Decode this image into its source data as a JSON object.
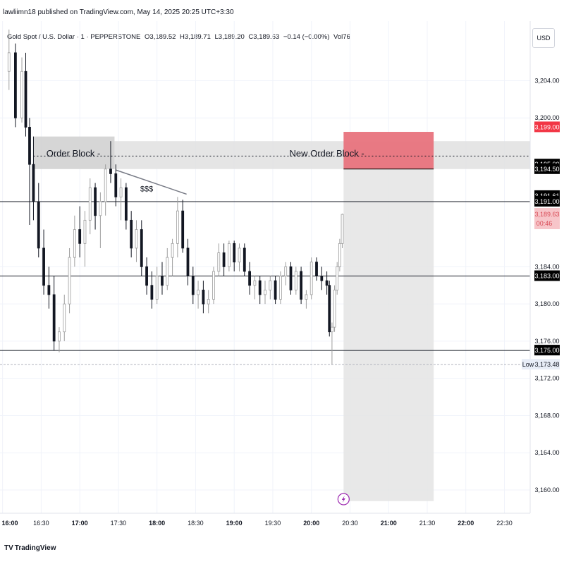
{
  "header": {
    "publisher_line": "lawliimn18 published on TradingView.com, May 14, 2025 20:25 UTC+3:30",
    "symbol": "Gold Spot / U.S. Dollar · 1 · PEPPERSTONE",
    "open": "O3,189.52",
    "high": "H3,189.71",
    "low": "L3,189.20",
    "close": "C3,189.63",
    "change": "−0.14 (−0.00%)",
    "volume": "Vol76",
    "currency": "USD"
  },
  "branding": {
    "logo_text": "TradingView",
    "logo_mark": "TV"
  },
  "chart_data": {
    "type": "candlestick",
    "x_ticks": [
      "16:00",
      "16:30",
      "17:00",
      "17:30",
      "18:00",
      "18:30",
      "19:00",
      "19:30",
      "20:00",
      "20:30",
      "21:00",
      "21:30",
      "22:00",
      "22:30"
    ],
    "x_ticks_bold": [
      "16:00",
      "17:00",
      "18:00",
      "19:00",
      "20:00",
      "21:00",
      "22:00"
    ],
    "y_ticks": [
      "3,204.00",
      "3,200.00",
      "3,184.00",
      "3,180.00",
      "3,176.00",
      "3,172.00",
      "3,168.00",
      "3,164.00",
      "3,160.00"
    ],
    "y_tick_values": [
      3204,
      3200,
      3184,
      3180,
      3176,
      3172,
      3168,
      3164,
      3160
    ],
    "price_badges": [
      {
        "label": "3,199.00",
        "value": 3199.0,
        "color": "#f23645",
        "text_color": "#ffffff"
      },
      {
        "label": "3,195.00",
        "value": 3195.0,
        "color": "#000000",
        "text_color": "#ffffff"
      },
      {
        "label": "3,194.50",
        "value": 3194.5,
        "color": "#000000",
        "text_color": "#ffffff"
      },
      {
        "label": "3,191.61",
        "value": 3191.61,
        "color": "#000000",
        "text_color": "#ffffff"
      },
      {
        "label": "3,191.00",
        "value": 3191.0,
        "color": "#000000",
        "text_color": "#ffffff"
      },
      {
        "label": "3,183.00",
        "value": 3183.0,
        "color": "#000000",
        "text_color": "#ffffff"
      },
      {
        "label": "3,175.00",
        "value": 3175.0,
        "color": "#000000",
        "text_color": "#ffffff"
      }
    ],
    "last_price": {
      "label": "3,189.63",
      "countdown": "00:46",
      "value": 3189.63,
      "color": "#f7c5c9",
      "text_color": "#d84a55"
    },
    "low_marker": {
      "tag": "Low",
      "label": "3,173.48",
      "value": 3173.48
    },
    "horizontal_lines": [
      3191.0,
      3183.0,
      3175.0
    ],
    "zones": [
      {
        "label": "Order Block",
        "x_start": "16:24",
        "x_end": "17:27",
        "y_low": 3194.5,
        "y_high": 3198.0,
        "color": "#cfcfcf"
      },
      {
        "label": "",
        "x_start": "17:27",
        "x_end": "22:50",
        "y_low": 3194.5,
        "y_high": 3197.5,
        "color": "#e0e0e0"
      },
      {
        "label": "New Order Block",
        "x_start": "20:25",
        "x_end": "21:35",
        "y_low": 3194.5,
        "y_high": 3198.5,
        "color": "#e8737d"
      },
      {
        "label": "",
        "x_start": "20:25",
        "x_end": "21:35",
        "y_low": 3158.8,
        "y_high": 3194.5,
        "color": "#e4e4e4"
      }
    ],
    "annotations": [
      {
        "text": "Order Block -",
        "x": "16:55",
        "y": 3196.1
      },
      {
        "text": "New Order Block -",
        "x": "20:12",
        "y": 3196.1
      },
      {
        "text": "$$$",
        "x": "17:52",
        "y": 3192.3
      }
    ],
    "liquidity_line": {
      "from": {
        "x": "17:28",
        "y": 3194.4
      },
      "to": {
        "x": "18:23",
        "y": 3191.8
      }
    },
    "ref_price": 3195.9,
    "x_range": [
      "15:58",
      "22:50"
    ],
    "y_range": [
      3157.5,
      3210.4
    ],
    "candles": [
      {
        "t": "16:05",
        "o": 3205.0,
        "h": 3209.5,
        "l": 3203.0,
        "c": 3207.0
      },
      {
        "t": "16:10",
        "o": 3207.0,
        "h": 3208.0,
        "l": 3199.0,
        "c": 3200.0
      },
      {
        "t": "16:15",
        "o": 3200.0,
        "h": 3206.5,
        "l": 3199.5,
        "c": 3205.0
      },
      {
        "t": "16:18",
        "o": 3205.0,
        "h": 3207.0,
        "l": 3198.0,
        "c": 3199.0
      },
      {
        "t": "16:21",
        "o": 3199.0,
        "h": 3200.0,
        "l": 3188.5,
        "c": 3195.0
      },
      {
        "t": "16:24",
        "o": 3195.0,
        "h": 3198.0,
        "l": 3189.0,
        "c": 3191.0
      },
      {
        "t": "16:28",
        "o": 3191.0,
        "h": 3193.0,
        "l": 3185.0,
        "c": 3186.0
      },
      {
        "t": "16:32",
        "o": 3186.0,
        "h": 3188.0,
        "l": 3181.0,
        "c": 3182.0
      },
      {
        "t": "16:36",
        "o": 3182.0,
        "h": 3184.0,
        "l": 3179.5,
        "c": 3181.0
      },
      {
        "t": "16:40",
        "o": 3181.0,
        "h": 3183.0,
        "l": 3175.0,
        "c": 3176.0
      },
      {
        "t": "16:44",
        "o": 3176.0,
        "h": 3177.5,
        "l": 3174.8,
        "c": 3177.0
      },
      {
        "t": "16:48",
        "o": 3177.0,
        "h": 3181.0,
        "l": 3176.0,
        "c": 3180.0
      },
      {
        "t": "16:52",
        "o": 3180.0,
        "h": 3186.0,
        "l": 3179.0,
        "c": 3185.0
      },
      {
        "t": "16:56",
        "o": 3185.0,
        "h": 3189.5,
        "l": 3184.0,
        "c": 3188.0
      },
      {
        "t": "17:00",
        "o": 3188.0,
        "h": 3190.5,
        "l": 3185.0,
        "c": 3186.5
      },
      {
        "t": "17:04",
        "o": 3186.5,
        "h": 3190.0,
        "l": 3184.0,
        "c": 3189.0
      },
      {
        "t": "17:08",
        "o": 3189.0,
        "h": 3193.5,
        "l": 3187.5,
        "c": 3192.5
      },
      {
        "t": "17:12",
        "o": 3192.5,
        "h": 3193.0,
        "l": 3188.0,
        "c": 3189.5
      },
      {
        "t": "17:16",
        "o": 3189.5,
        "h": 3192.0,
        "l": 3186.0,
        "c": 3191.0
      },
      {
        "t": "17:20",
        "o": 3191.0,
        "h": 3195.0,
        "l": 3189.5,
        "c": 3194.5
      },
      {
        "t": "17:24",
        "o": 3194.5,
        "h": 3197.5,
        "l": 3193.0,
        "c": 3194.0
      },
      {
        "t": "17:28",
        "o": 3194.0,
        "h": 3195.0,
        "l": 3190.5,
        "c": 3191.5
      },
      {
        "t": "17:32",
        "o": 3191.5,
        "h": 3193.5,
        "l": 3189.0,
        "c": 3192.5
      },
      {
        "t": "17:36",
        "o": 3192.5,
        "h": 3193.0,
        "l": 3188.0,
        "c": 3189.0
      },
      {
        "t": "17:40",
        "o": 3189.0,
        "h": 3190.0,
        "l": 3185.0,
        "c": 3186.0
      },
      {
        "t": "17:44",
        "o": 3186.0,
        "h": 3189.0,
        "l": 3184.5,
        "c": 3188.0
      },
      {
        "t": "17:48",
        "o": 3188.0,
        "h": 3189.0,
        "l": 3183.0,
        "c": 3184.0
      },
      {
        "t": "17:52",
        "o": 3184.0,
        "h": 3185.0,
        "l": 3181.0,
        "c": 3182.0
      },
      {
        "t": "17:56",
        "o": 3182.0,
        "h": 3183.5,
        "l": 3179.5,
        "c": 3180.5
      },
      {
        "t": "18:00",
        "o": 3180.5,
        "h": 3184.0,
        "l": 3180.0,
        "c": 3183.0
      },
      {
        "t": "18:04",
        "o": 3183.0,
        "h": 3184.5,
        "l": 3181.0,
        "c": 3182.0
      },
      {
        "t": "18:08",
        "o": 3182.0,
        "h": 3186.0,
        "l": 3181.5,
        "c": 3185.0
      },
      {
        "t": "18:12",
        "o": 3185.0,
        "h": 3187.0,
        "l": 3183.0,
        "c": 3186.5
      },
      {
        "t": "18:16",
        "o": 3186.5,
        "h": 3191.5,
        "l": 3185.0,
        "c": 3190.0
      },
      {
        "t": "18:20",
        "o": 3190.0,
        "h": 3191.2,
        "l": 3185.5,
        "c": 3186.0
      },
      {
        "t": "18:24",
        "o": 3186.0,
        "h": 3187.0,
        "l": 3182.0,
        "c": 3183.0
      },
      {
        "t": "18:28",
        "o": 3183.0,
        "h": 3184.0,
        "l": 3180.0,
        "c": 3181.0
      },
      {
        "t": "18:32",
        "o": 3181.0,
        "h": 3182.5,
        "l": 3179.5,
        "c": 3181.5
      },
      {
        "t": "18:36",
        "o": 3181.5,
        "h": 3182.5,
        "l": 3179.0,
        "c": 3180.0
      },
      {
        "t": "18:40",
        "o": 3180.0,
        "h": 3181.5,
        "l": 3179.0,
        "c": 3180.5
      },
      {
        "t": "18:44",
        "o": 3180.5,
        "h": 3184.0,
        "l": 3180.0,
        "c": 3183.5
      },
      {
        "t": "18:48",
        "o": 3183.5,
        "h": 3186.5,
        "l": 3183.0,
        "c": 3185.5
      },
      {
        "t": "18:52",
        "o": 3185.5,
        "h": 3186.5,
        "l": 3183.0,
        "c": 3184.0
      },
      {
        "t": "18:56",
        "o": 3184.0,
        "h": 3186.8,
        "l": 3183.5,
        "c": 3186.5
      },
      {
        "t": "19:00",
        "o": 3186.5,
        "h": 3186.8,
        "l": 3183.5,
        "c": 3184.5
      },
      {
        "t": "19:04",
        "o": 3184.5,
        "h": 3186.5,
        "l": 3183.5,
        "c": 3186.0
      },
      {
        "t": "19:08",
        "o": 3186.0,
        "h": 3186.5,
        "l": 3183.0,
        "c": 3183.5
      },
      {
        "t": "19:12",
        "o": 3183.5,
        "h": 3184.5,
        "l": 3181.0,
        "c": 3182.0
      },
      {
        "t": "19:16",
        "o": 3182.0,
        "h": 3183.0,
        "l": 3180.5,
        "c": 3182.5
      },
      {
        "t": "19:20",
        "o": 3182.5,
        "h": 3183.0,
        "l": 3180.0,
        "c": 3181.0
      },
      {
        "t": "19:24",
        "o": 3181.0,
        "h": 3182.5,
        "l": 3180.0,
        "c": 3181.5
      },
      {
        "t": "19:28",
        "o": 3181.5,
        "h": 3183.0,
        "l": 3180.5,
        "c": 3182.5
      },
      {
        "t": "19:32",
        "o": 3182.5,
        "h": 3183.0,
        "l": 3180.0,
        "c": 3180.5
      },
      {
        "t": "19:36",
        "o": 3180.5,
        "h": 3183.5,
        "l": 3180.0,
        "c": 3183.0
      },
      {
        "t": "19:40",
        "o": 3183.0,
        "h": 3184.5,
        "l": 3182.0,
        "c": 3184.0
      },
      {
        "t": "19:44",
        "o": 3184.0,
        "h": 3184.5,
        "l": 3181.0,
        "c": 3181.5
      },
      {
        "t": "19:48",
        "o": 3181.5,
        "h": 3184.0,
        "l": 3181.0,
        "c": 3183.5
      },
      {
        "t": "19:52",
        "o": 3183.5,
        "h": 3184.0,
        "l": 3180.0,
        "c": 3180.5
      },
      {
        "t": "19:56",
        "o": 3180.5,
        "h": 3181.5,
        "l": 3179.5,
        "c": 3181.0
      },
      {
        "t": "20:00",
        "o": 3181.0,
        "h": 3185.0,
        "l": 3180.5,
        "c": 3184.5
      },
      {
        "t": "20:04",
        "o": 3184.5,
        "h": 3185.0,
        "l": 3182.5,
        "c": 3183.0
      },
      {
        "t": "20:08",
        "o": 3183.0,
        "h": 3184.0,
        "l": 3181.5,
        "c": 3182.5
      },
      {
        "t": "20:12",
        "o": 3182.5,
        "h": 3183.5,
        "l": 3181.0,
        "c": 3182.0
      },
      {
        "t": "20:14",
        "o": 3182.0,
        "h": 3182.5,
        "l": 3176.5,
        "c": 3177.0
      },
      {
        "t": "20:16",
        "o": 3177.0,
        "h": 3178.0,
        "l": 3173.48,
        "c": 3177.5
      },
      {
        "t": "20:18",
        "o": 3177.5,
        "h": 3182.0,
        "l": 3177.0,
        "c": 3181.5
      },
      {
        "t": "20:20",
        "o": 3181.5,
        "h": 3184.5,
        "l": 3181.0,
        "c": 3184.0
      },
      {
        "t": "20:22",
        "o": 3184.0,
        "h": 3187.0,
        "l": 3183.5,
        "c": 3186.5
      },
      {
        "t": "20:24",
        "o": 3186.5,
        "h": 3189.71,
        "l": 3186.0,
        "c": 3189.63
      }
    ]
  }
}
